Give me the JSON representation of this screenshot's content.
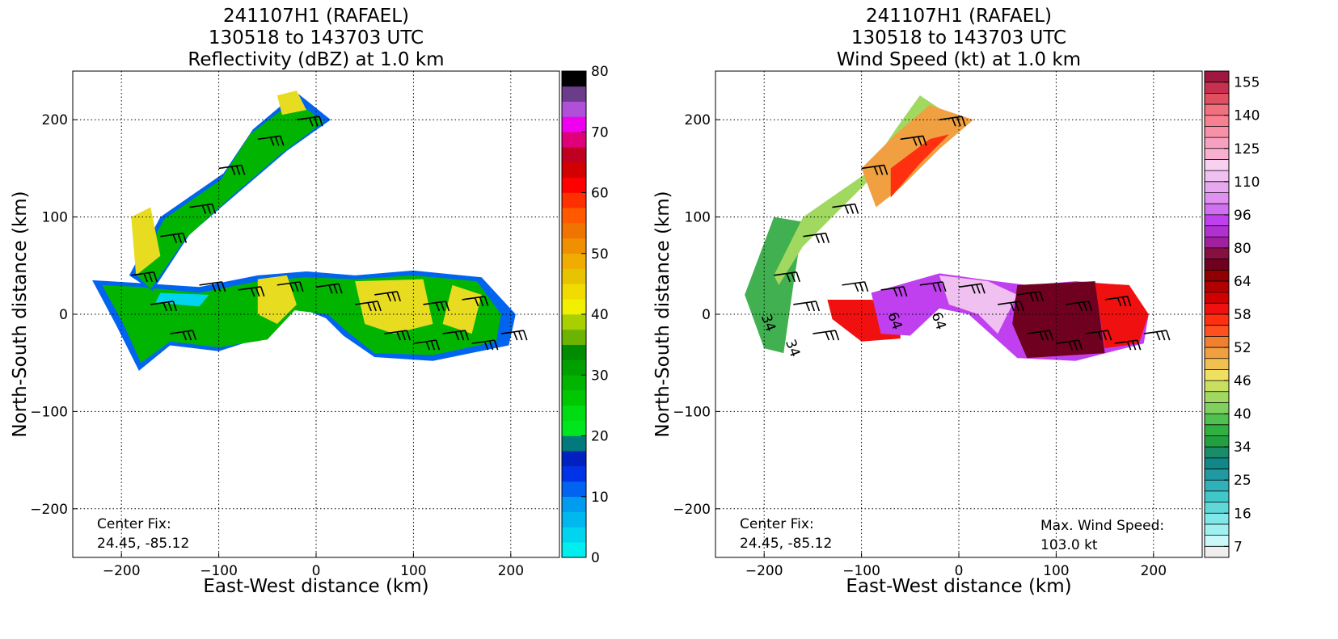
{
  "chart_data": [
    {
      "type": "radar-field",
      "title": [
        "241107H1 (RAFAEL)",
        "130518 to 143703 UTC",
        "Reflectivity (dBZ) at 1.0 km"
      ],
      "xlabel": "East-West distance (km)",
      "ylabel": "North-South distance (km)",
      "xlim": [
        -250,
        250
      ],
      "ylim": [
        -250,
        250
      ],
      "xticks": [
        {
          "value": -200,
          "label": "−200"
        },
        {
          "value": -100,
          "label": "−100"
        },
        0,
        100,
        200
      ],
      "yticks": [
        {
          "value": -200,
          "label": "−200"
        },
        {
          "value": -100,
          "label": "−100"
        },
        0,
        100,
        200
      ],
      "grid": true,
      "annotations": [
        "Center Fix:",
        "24.45, -85.12"
      ],
      "colorbar": {
        "scale": "linear",
        "lim": [
          0,
          80
        ],
        "ticks": [
          0,
          10,
          20,
          30,
          40,
          50,
          60,
          70,
          80
        ],
        "colors": [
          "#00eeee",
          "#00d4ee",
          "#00b8ee",
          "#009cee",
          "#0064f0",
          "#0032e8",
          "#0020c0",
          "#007a7a",
          "#00e61e",
          "#00dc14",
          "#00c800",
          "#00b400",
          "#00a000",
          "#008c00",
          "#6cb400",
          "#a8d000",
          "#f0f000",
          "#f0dc00",
          "#e8c400",
          "#f0ac00",
          "#f09000",
          "#f07400",
          "#ff5a00",
          "#ff3000",
          "#ff0000",
          "#d20000",
          "#c00020",
          "#e0007a",
          "#f000f0",
          "#b050d8",
          "#6a3c8a",
          "#000000"
        ]
      }
    },
    {
      "type": "radar-field",
      "title": [
        "241107H1 (RAFAEL)",
        "130518 to 143703 UTC",
        "Wind Speed (kt) at 1.0 km"
      ],
      "xlabel": "East-West distance (km)",
      "ylabel": "North-South distance (km)",
      "xlim": [
        -250,
        250
      ],
      "ylim": [
        -250,
        250
      ],
      "xticks": [
        {
          "value": -200,
          "label": "−200"
        },
        {
          "value": -100,
          "label": "−100"
        },
        0,
        100,
        200
      ],
      "yticks": [
        {
          "value": -200,
          "label": "−200"
        },
        {
          "value": -100,
          "label": "−100"
        },
        0,
        100,
        200
      ],
      "grid": true,
      "annotations": [
        "Center Fix:",
        "24.45, -85.12",
        "Max. Wind Speed:",
        "103.0 kt"
      ],
      "contour_labels": [
        "34",
        "34",
        "64",
        "64"
      ],
      "colorbar": {
        "scale": "index",
        "ticks": [
          7,
          16,
          25,
          34,
          40,
          46,
          52,
          58,
          64,
          80,
          96,
          110,
          125,
          140,
          155
        ],
        "colors": [
          "#eeeeee",
          "#c8f8f8",
          "#a0f0f0",
          "#80e8e8",
          "#60d8d8",
          "#40c8c8",
          "#30b0b8",
          "#209aa0",
          "#108888",
          "#1a8c6a",
          "#20a040",
          "#30b040",
          "#50c050",
          "#80d060",
          "#a0d860",
          "#c8e060",
          "#f0e060",
          "#f0c050",
          "#f0a040",
          "#f08030",
          "#ff5020",
          "#ff3010",
          "#f01010",
          "#d00000",
          "#b00000",
          "#900000",
          "#700020",
          "#881040",
          "#a020a0",
          "#b030d0",
          "#c040f0",
          "#d070f0",
          "#e090f0",
          "#e8a8f0",
          "#f0c0f0",
          "#f8d0f0",
          "#f8b0d0",
          "#f8a0c0",
          "#f890a8",
          "#f88090",
          "#f07080",
          "#e05060",
          "#c83050",
          "#a01840"
        ]
      }
    }
  ]
}
